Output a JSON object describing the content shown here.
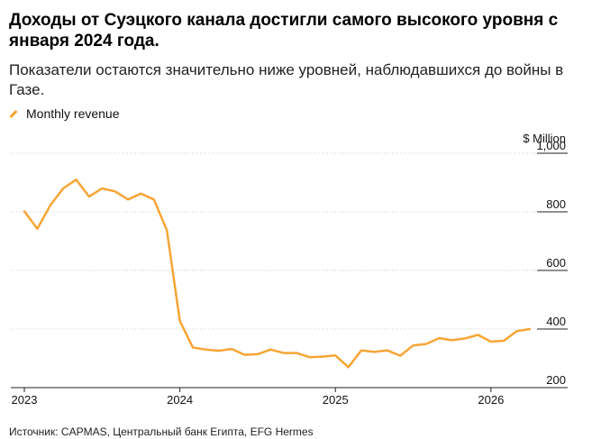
{
  "header": {
    "title": "Доходы от Суэцкого канала достигли самого высокого уровня с января 2024 года.",
    "subtitle": "Показатели остаются значительно ниже уровней, наблюдавшихся до войны в Газе."
  },
  "footer": {
    "source": "Источник: CAPMAS, Центральный банк Египта, EFG Hermes"
  },
  "chart_data": {
    "type": "line",
    "legend": {
      "label": "Monthly revenue",
      "position": "top-left"
    },
    "y_unit_label": "$ Million",
    "ylim": [
      200,
      1000
    ],
    "y_ticks": [
      {
        "value": 1000,
        "label": "1,000"
      },
      {
        "value": 800,
        "label": "800"
      },
      {
        "value": 600,
        "label": "600"
      },
      {
        "value": 400,
        "label": "400"
      },
      {
        "value": 200,
        "label": "200"
      }
    ],
    "x_ticks": [
      {
        "date": "2023-01",
        "label": "2023"
      },
      {
        "date": "2024-01",
        "label": "2024"
      },
      {
        "date": "2025-01",
        "label": "2025"
      },
      {
        "date": "2026-01",
        "label": "2026"
      }
    ],
    "xlim": [
      "2023-01",
      "2026-04"
    ],
    "grid": "horizontal",
    "color": "#f6a535",
    "series": [
      {
        "name": "Monthly revenue",
        "x": [
          "2023-01",
          "2023-02",
          "2023-03",
          "2023-04",
          "2023-05",
          "2023-06",
          "2023-07",
          "2023-08",
          "2023-09",
          "2023-10",
          "2023-11",
          "2023-12",
          "2024-01",
          "2024-02",
          "2024-03",
          "2024-04",
          "2024-05",
          "2024-06",
          "2024-07",
          "2024-08",
          "2024-09",
          "2024-10",
          "2024-11",
          "2024-12",
          "2025-01",
          "2025-02",
          "2025-03",
          "2025-04",
          "2025-05",
          "2025-06",
          "2025-07",
          "2025-08",
          "2025-09",
          "2025-10",
          "2025-11",
          "2025-12",
          "2026-01",
          "2026-02",
          "2026-03",
          "2026-04"
        ],
        "values": [
          802,
          742,
          822,
          880,
          910,
          852,
          880,
          870,
          842,
          862,
          842,
          737,
          428,
          337,
          330,
          326,
          332,
          312,
          314,
          330,
          318,
          318,
          304,
          306,
          310,
          270,
          327,
          322,
          327,
          309,
          344,
          349,
          369,
          362,
          368,
          380,
          357,
          360,
          393,
          400
        ]
      }
    ]
  }
}
